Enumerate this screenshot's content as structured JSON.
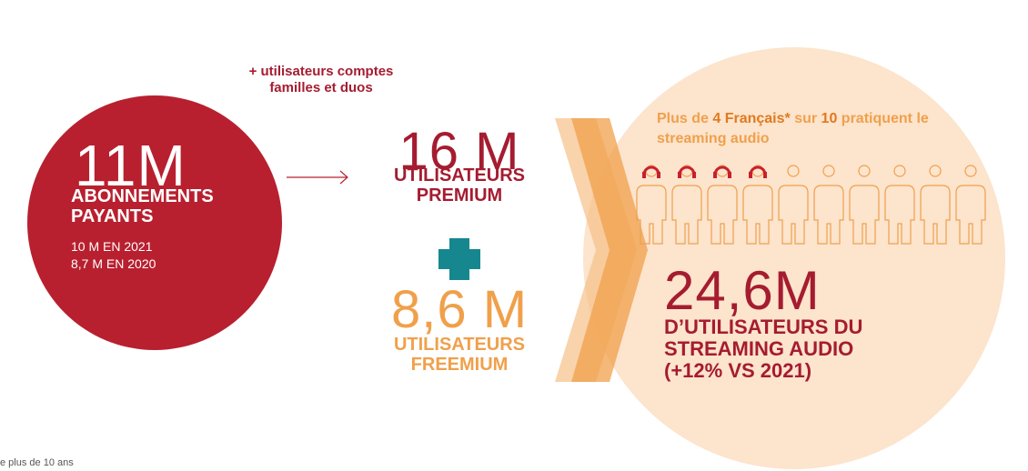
{
  "subscribers": {
    "value": "11M",
    "label": "ABONNEMENTS PAYANTS",
    "history": [
      "10 M EN 2021",
      "8,7 M EN 2020"
    ]
  },
  "note": "+ utilisateurs comptes familles et duos",
  "premium": {
    "value": "16 M",
    "label": "UTILISATEURS PREMIUM"
  },
  "freemium": {
    "value": "8,6 M",
    "label": "UTILISATEURS FREEMIUM"
  },
  "share": [
    "Plus de ",
    "4 Français*",
    " sur ",
    "10",
    " pratiquent le streaming audio"
  ],
  "total": {
    "value": "24,6M",
    "label": "D’UTILISATEURS DU STREAMING AUDIO (+12% VS 2021)"
  },
  "footnote": "e plus de 10 ans"
}
